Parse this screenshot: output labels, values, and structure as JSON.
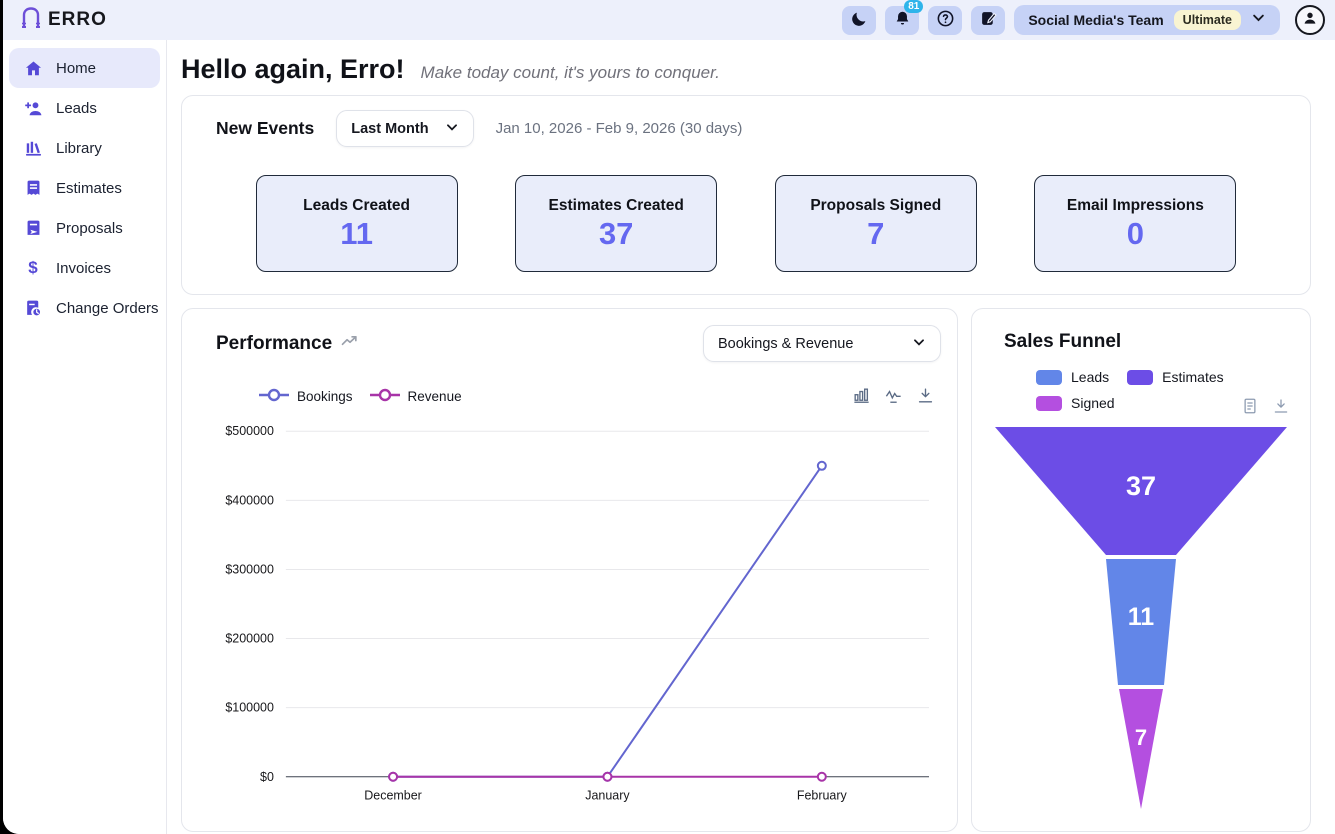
{
  "topbar": {
    "logo_text": "ERRO",
    "team_name": "Social Media's Team",
    "plan_badge": "Ultimate",
    "notification_count": "81",
    "icons": [
      "dark-mode-moon-icon",
      "notifications-bell-icon",
      "help-icon",
      "notes-compose-icon",
      "chevron-down-icon",
      "avatar-person-icon"
    ],
    "accent_bg": "#c6d2f6"
  },
  "sidebar": {
    "items": [
      {
        "label": "Home",
        "icon": "home-icon",
        "active": true
      },
      {
        "label": "Leads",
        "icon": "user-plus-icon",
        "active": false
      },
      {
        "label": "Library",
        "icon": "library-books-icon",
        "active": false
      },
      {
        "label": "Estimates",
        "icon": "document-icon",
        "active": false
      },
      {
        "label": "Proposals",
        "icon": "document-send-icon",
        "active": false
      },
      {
        "label": "Invoices",
        "icon": "dollar-icon",
        "active": false
      },
      {
        "label": "Change Orders",
        "icon": "document-clock-icon",
        "active": false
      }
    ],
    "accent_color": "#5549d6"
  },
  "header": {
    "greeting": "Hello again, Erro!",
    "tagline": "Make today count, it's yours to conquer."
  },
  "new_events": {
    "title": "New Events",
    "range_selected": "Last Month",
    "date_range": "Jan 10, 2026 - Feb 9, 2026 (30 days)",
    "stats": [
      {
        "label": "Leads Created",
        "value": "11"
      },
      {
        "label": "Estimates Created",
        "value": "37"
      },
      {
        "label": "Proposals Signed",
        "value": "7"
      },
      {
        "label": "Email Impressions",
        "value": "0"
      }
    ],
    "stat_value_color": "#6468f0"
  },
  "performance": {
    "title": "Performance",
    "view_selected": "Bookings & Revenue",
    "tool_icons": [
      "bar-chart-icon",
      "line-chart-icon",
      "download-icon"
    ]
  },
  "sales_funnel": {
    "title": "Sales Funnel",
    "legend": [
      {
        "label": "Leads",
        "color": "#6286e8"
      },
      {
        "label": "Estimates",
        "color": "#6c4de6"
      },
      {
        "label": "Signed",
        "color": "#b44fe0"
      }
    ],
    "tool_icons": [
      "report-document-icon",
      "download-icon"
    ]
  },
  "chart_data": [
    {
      "type": "line",
      "title": "Performance — Bookings & Revenue",
      "categories": [
        "December",
        "January",
        "February"
      ],
      "series": [
        {
          "name": "Bookings",
          "color": "#6366cf",
          "values": [
            0,
            0,
            450000
          ]
        },
        {
          "name": "Revenue",
          "color": "#a834a8",
          "values": [
            0,
            0,
            0
          ]
        }
      ],
      "ylim": [
        0,
        500000
      ],
      "ytick_step": 100000,
      "ytick_prefix": "$",
      "grid": true,
      "legend_position": "top-left"
    },
    {
      "type": "funnel",
      "title": "Sales Funnel",
      "segments": [
        {
          "name": "Estimates",
          "value": 37,
          "color": "#6c4de6"
        },
        {
          "name": "Leads",
          "value": 11,
          "color": "#6286e8"
        },
        {
          "name": "Signed",
          "value": 7,
          "color": "#b44fe0"
        }
      ]
    }
  ]
}
